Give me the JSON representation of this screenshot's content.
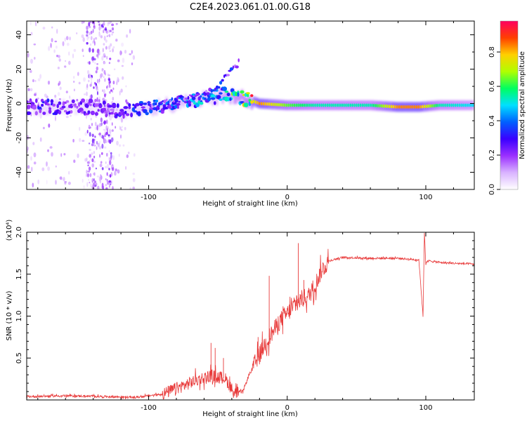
{
  "title": "C2E4.2023.061.01.00.G18",
  "chart_data": [
    {
      "type": "heatmap",
      "xlabel": "Height of straight line (km)",
      "ylabel": "Frequency (Hz)",
      "xlim": [
        -188,
        135
      ],
      "ylim": [
        -50,
        48
      ],
      "xticks": [
        -100,
        0,
        100
      ],
      "yticks": [
        -40,
        -20,
        0,
        20,
        40
      ],
      "colorbar": {
        "label": "Normalized spectral amplitude",
        "range": [
          0,
          0.98
        ],
        "ticks": [
          0.0,
          0.2,
          0.4,
          0.6,
          0.8
        ],
        "colormap": [
          "#ffffff",
          "#d9b3ff",
          "#9b30ff",
          "#3a00ff",
          "#0060ff",
          "#00e0ff",
          "#00ff60",
          "#b0ff00",
          "#ffd000",
          "#ff4000",
          "#ff0060"
        ]
      },
      "track": {
        "x": [
          -188,
          -170,
          -150,
          -130,
          -120,
          -100,
          -80,
          -60,
          -45,
          -30,
          -20,
          0,
          20,
          60,
          80,
          95,
          110,
          135
        ],
        "y": [
          -2,
          -2,
          -2,
          -3,
          -4,
          -3,
          0,
          3,
          5,
          3,
          0,
          -1,
          -1,
          -1,
          -2,
          -2,
          -1,
          -1
        ],
        "amplitude": [
          0.25,
          0.25,
          0.2,
          0.2,
          0.25,
          0.3,
          0.35,
          0.4,
          0.45,
          0.6,
          0.85,
          0.65,
          0.55,
          0.55,
          0.85,
          0.85,
          0.55,
          0.5
        ]
      },
      "branch": {
        "x": [
          -100,
          -80,
          -60,
          -50,
          -45,
          -40,
          -35
        ],
        "y": [
          -2,
          2,
          6,
          10,
          15,
          19,
          24
        ]
      },
      "noise_band": {
        "x": [
          -145,
          -125
        ],
        "ylim": [
          -50,
          48
        ]
      }
    },
    {
      "type": "line",
      "xlabel": "Height of straight line (km)",
      "ylabel": "SNR (10 * v/v)",
      "multiplier": "(x10⁴)",
      "xlim": [
        -188,
        135
      ],
      "ylim": [
        0,
        20000
      ],
      "xticks": [
        -100,
        0,
        100
      ],
      "yticks": [
        5000,
        10000,
        15000,
        20000
      ],
      "ytick_labels": [
        "0.5",
        "1.0",
        "1.5",
        "2.0"
      ],
      "color": "#e83a3a",
      "x": [
        -188,
        -160,
        -130,
        -110,
        -90,
        -75,
        -65,
        -55,
        -45,
        -38,
        -32,
        -28,
        -22,
        -15,
        -10,
        -5,
        0,
        5,
        10,
        15,
        20,
        25,
        30,
        40,
        60,
        80,
        95,
        98,
        99,
        100,
        102,
        110,
        120,
        135
      ],
      "y": [
        400,
        500,
        400,
        300,
        700,
        1700,
        2400,
        2900,
        2600,
        800,
        1000,
        2800,
        4800,
        7000,
        8200,
        9500,
        10300,
        11200,
        12000,
        12300,
        13700,
        15500,
        16600,
        17000,
        16900,
        16900,
        16700,
        10000,
        20000,
        16300,
        16600,
        16400,
        16300,
        16200
      ],
      "spikes": [
        {
          "x": -55,
          "y": 6800
        },
        {
          "x": -52,
          "y": 6200
        },
        {
          "x": -46,
          "y": 5000
        },
        {
          "x": -21,
          "y": 7500
        },
        {
          "x": -13,
          "y": 14800
        },
        {
          "x": 8,
          "y": 18700
        },
        {
          "x": 12,
          "y": 14300
        }
      ]
    }
  ]
}
